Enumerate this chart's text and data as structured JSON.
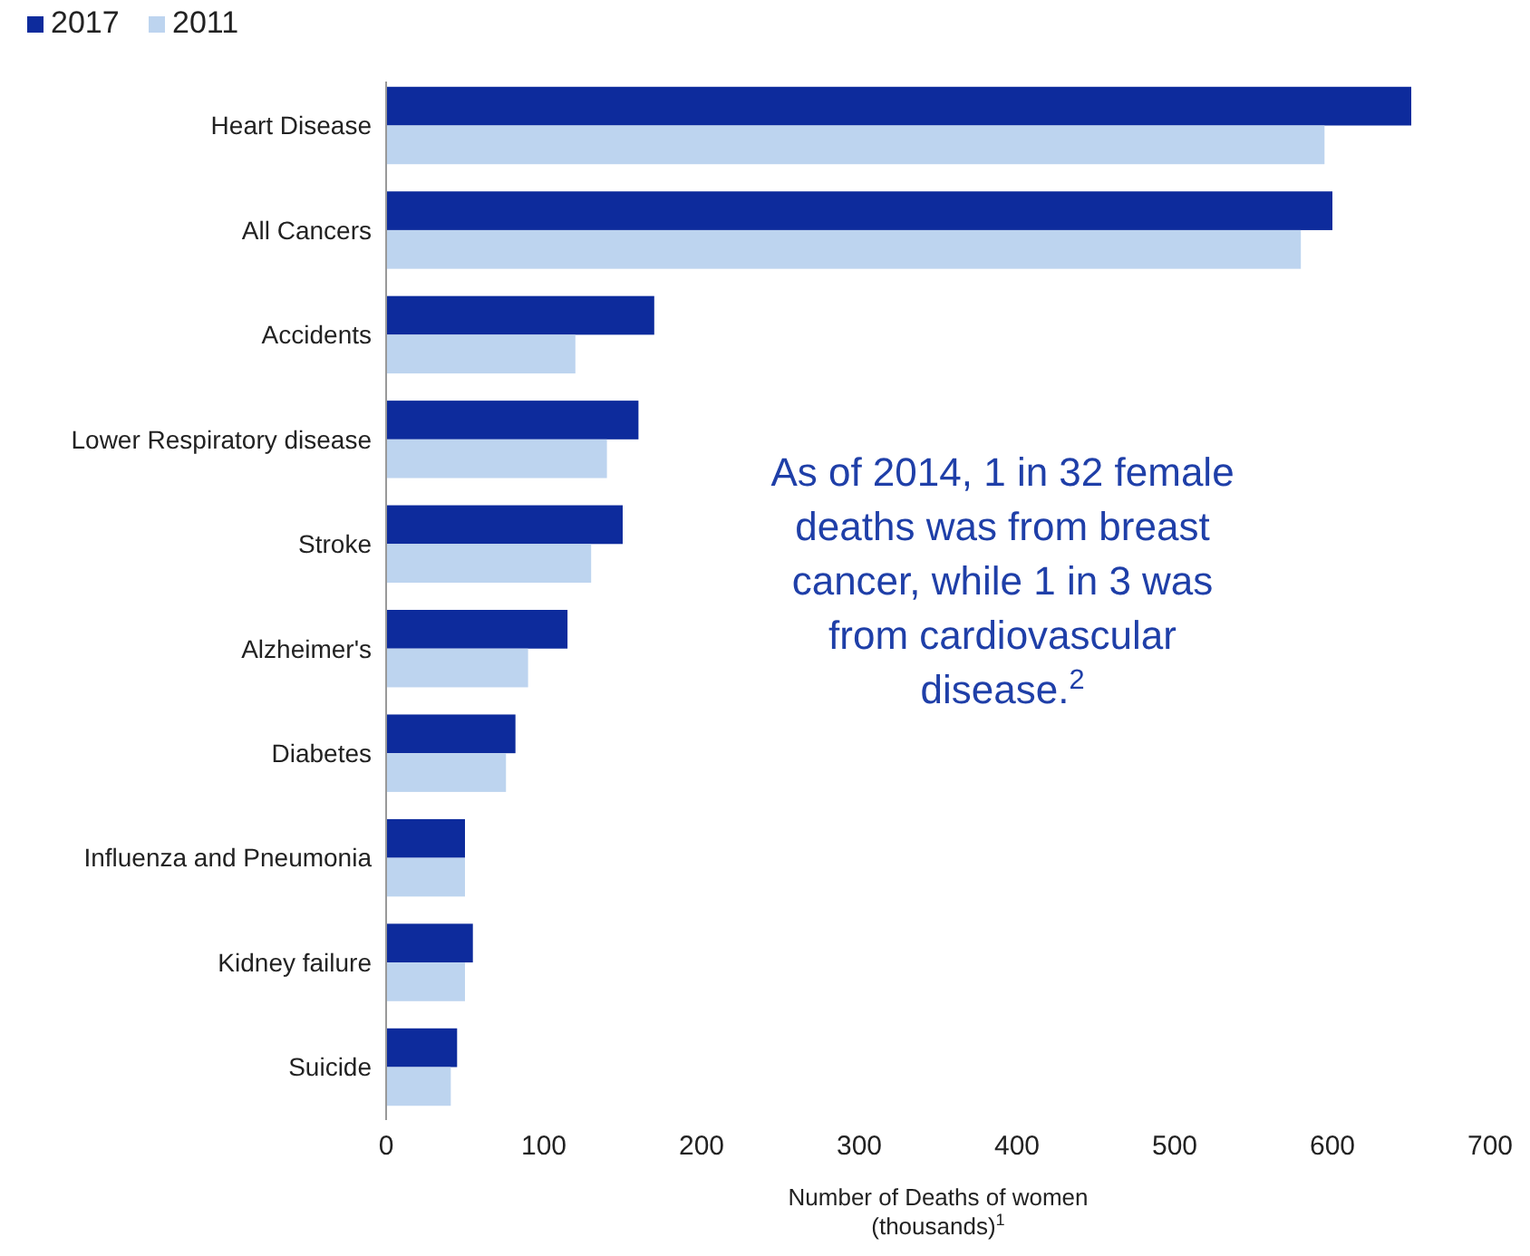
{
  "chart_data": {
    "type": "bar",
    "orientation": "horizontal",
    "categories": [
      "Heart Disease",
      "All Cancers",
      "Accidents",
      "Lower Respiratory disease",
      "Stroke",
      "Alzheimer's",
      "Diabetes",
      "Influenza and Pneumonia",
      "Kidney failure",
      "Suicide"
    ],
    "series": [
      {
        "name": "2017",
        "color": "#0d2b9c",
        "values": [
          650,
          600,
          170,
          160,
          150,
          115,
          82,
          50,
          55,
          45
        ]
      },
      {
        "name": "2011",
        "color": "#bdd4ef",
        "values": [
          595,
          580,
          120,
          140,
          130,
          90,
          76,
          50,
          50,
          41
        ]
      }
    ],
    "xlim": [
      0,
      700
    ],
    "xticks": [
      0,
      100,
      200,
      300,
      400,
      500,
      600,
      700
    ],
    "xlabel": "Number of Deaths of women (thousands)$^{1}$",
    "annotations": [
      "As of 2014, 1 in 32 female deaths was from breast cancer, while 1 in 3 was from cardiovascular disease.$^{2}$"
    ],
    "legend": "top left",
    "grid": false
  }
}
